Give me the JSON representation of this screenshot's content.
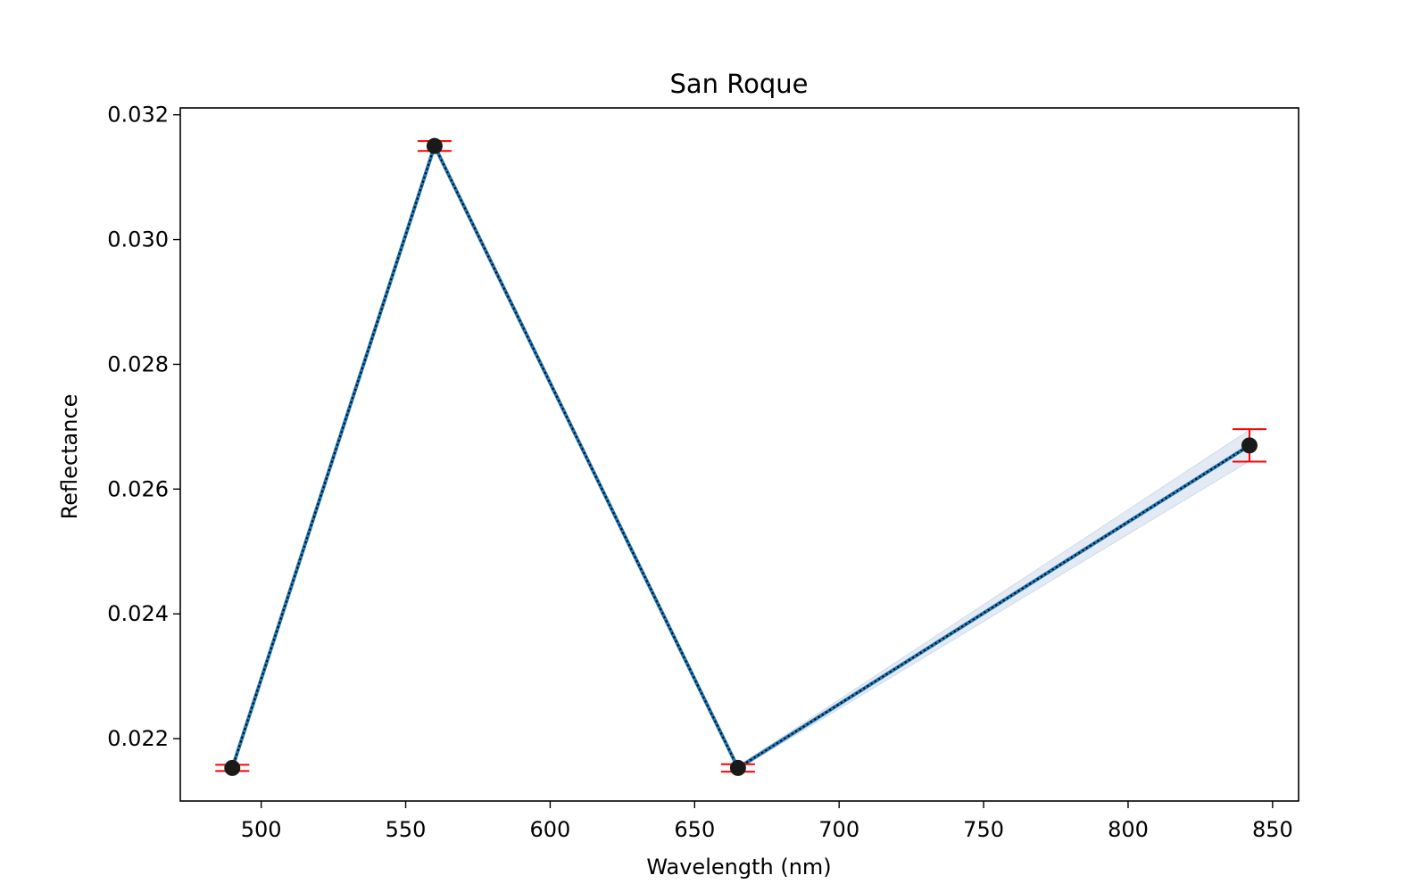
{
  "chart_data": {
    "type": "line",
    "title": "San Roque",
    "xlabel": "Wavelength (nm)",
    "ylabel": "Reflectance",
    "xlim": [
      472,
      859
    ],
    "ylim": [
      0.021,
      0.03211
    ],
    "xticks": [
      500,
      550,
      600,
      650,
      700,
      750,
      800,
      850
    ],
    "yticks": [
      0.022,
      0.024,
      0.026,
      0.028,
      0.03,
      0.032
    ],
    "ytick_labels": [
      "0.022",
      "0.024",
      "0.026",
      "0.028",
      "0.030",
      "0.032"
    ],
    "grid": false,
    "series": [
      {
        "x": [
          490,
          560,
          665,
          842
        ],
        "y": [
          0.02153,
          0.0315,
          0.02153,
          0.0267
        ],
        "yerr": [
          5e-05,
          8e-05,
          6e-05,
          0.00026
        ],
        "band_low": [
          0.02153,
          0.0315,
          0.0215,
          0.02645
        ],
        "band_high": [
          0.02153,
          0.0315,
          0.02156,
          0.02695
        ]
      }
    ],
    "colors": {
      "line": "#1f77b4",
      "dotted_line": "#000000",
      "marker": "#1a1a1a",
      "errorbar": "#ff0000",
      "band": "#b0c4de"
    }
  }
}
